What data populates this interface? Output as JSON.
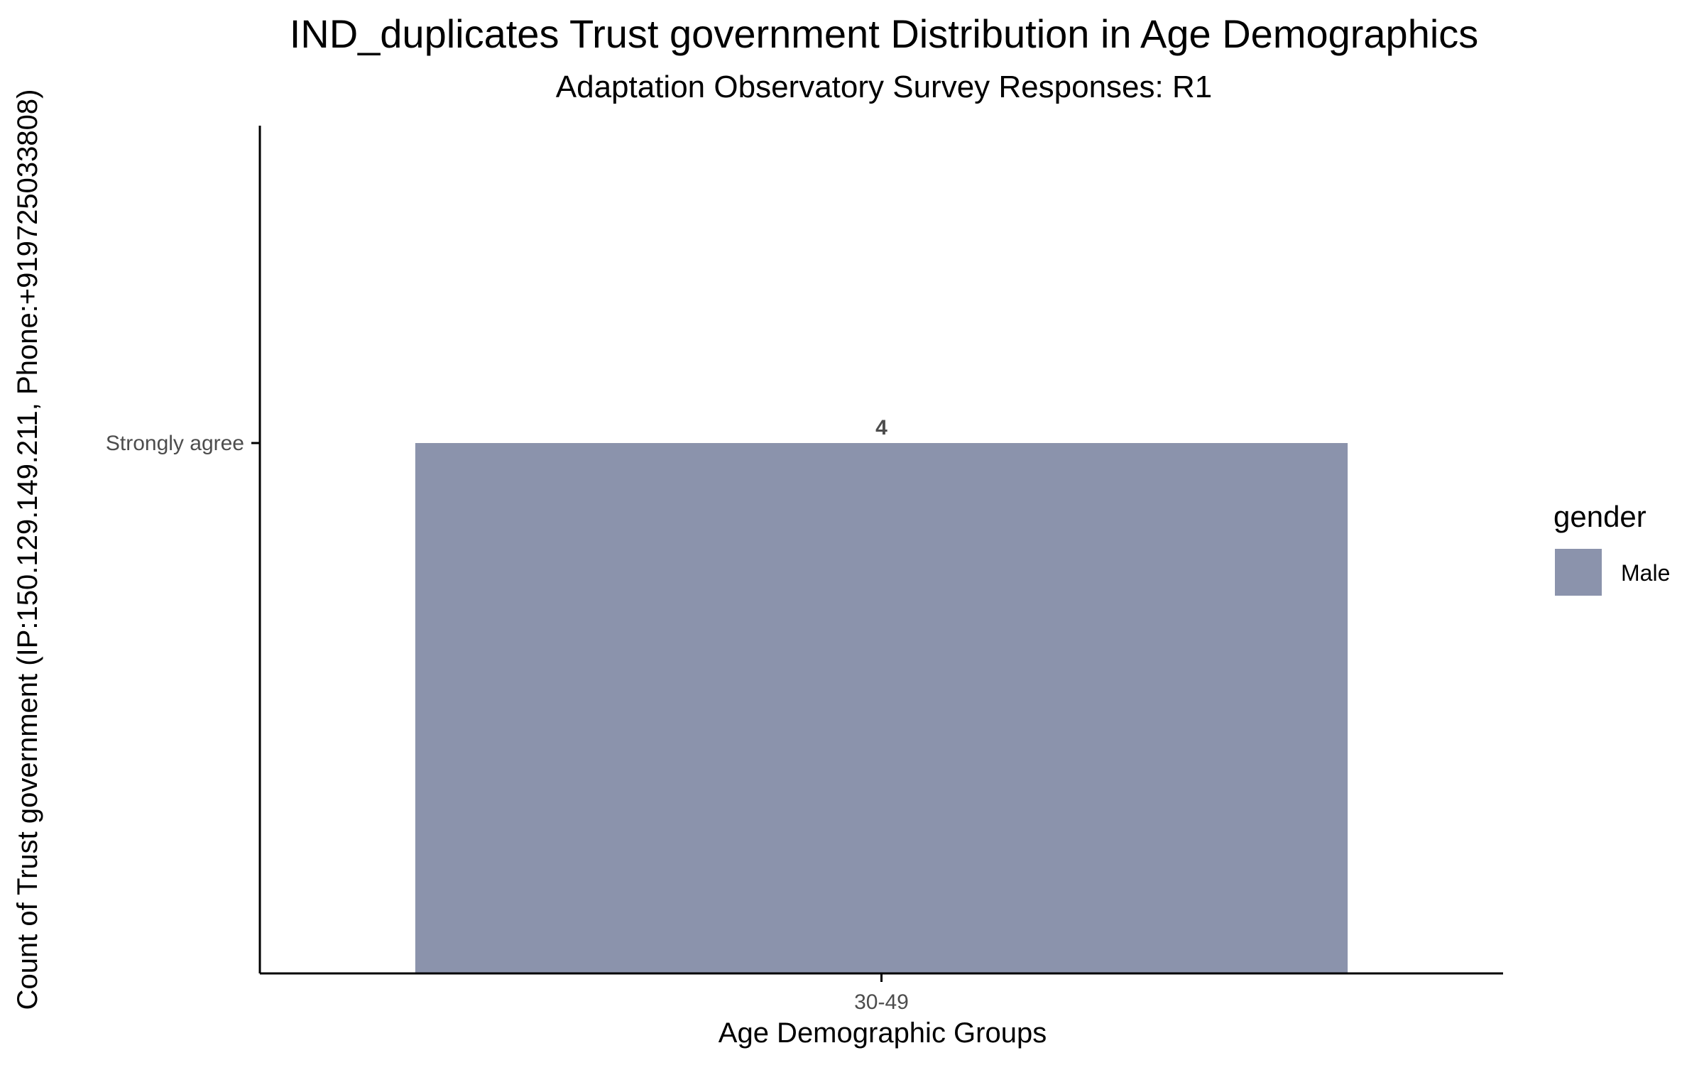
{
  "chart_data": {
    "type": "bar",
    "title": "IND_duplicates Trust government Distribution in Age Demographics",
    "subtitle": "Adaptation Observatory Survey Responses: R1",
    "xlabel": "Age Demographic Groups",
    "ylabel": "Count of Trust government (IP:150.129.149.211, Phone:+919725033808)",
    "categories": [
      "30-49"
    ],
    "y_ticks": [
      "Strongly agree"
    ],
    "series": [
      {
        "name": "Male",
        "color": "#8b93ac",
        "values": [
          4
        ],
        "y_category": [
          "Strongly agree"
        ],
        "labels": [
          "4"
        ]
      }
    ],
    "legend": {
      "title": "gender",
      "placement": "right",
      "entries": [
        "Male"
      ]
    },
    "grid": false
  }
}
